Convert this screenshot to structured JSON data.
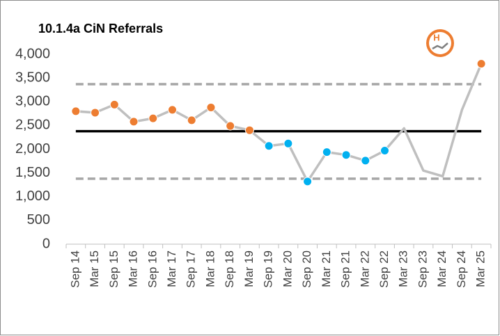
{
  "chart_data": {
    "type": "line",
    "title": "10.1.4a  CiN Referrals",
    "logo_text": "H",
    "categories": [
      "Sep 14",
      "Mar 15",
      "Sep 15",
      "Mar 16",
      "Sep 16",
      "Mar 17",
      "Sep 17",
      "Mar 18",
      "Sep 18",
      "Mar 19",
      "Sep 19",
      "Mar 20",
      "Sep 20",
      "Mar 21",
      "Sep 21",
      "Mar 22",
      "Sep 22",
      "Mar 23",
      "Sep 23",
      "Mar 24",
      "Sep 24",
      "Mar 25"
    ],
    "series": [
      {
        "color": "#bfbfbf",
        "values": [
          2800,
          2770,
          2940,
          2580,
          2650,
          2830,
          2610,
          2880,
          2490,
          2400,
          2070,
          2120,
          1320,
          1940,
          1880,
          1760,
          1970,
          2440,
          1550,
          1430,
          2830,
          3800
        ],
        "marker_colors": [
          "#ed7d31",
          "#ed7d31",
          "#ed7d31",
          "#ed7d31",
          "#ed7d31",
          "#ed7d31",
          "#ed7d31",
          "#ed7d31",
          "#ed7d31",
          "#ed7d31",
          "#00b0f0",
          "#00b0f0",
          "#00b0f0",
          "#00b0f0",
          "#00b0f0",
          "#00b0f0",
          "#00b0f0",
          null,
          null,
          null,
          null,
          "#ed7d31"
        ]
      }
    ],
    "reference_lines": [
      {
        "value": 3370,
        "color": "#a6a6a6",
        "dashed": true
      },
      {
        "value": 2380,
        "color": "#000000",
        "dashed": false
      },
      {
        "value": 1380,
        "color": "#a6a6a6",
        "dashed": true
      }
    ],
    "ylim": [
      0,
      4000
    ],
    "yticks": [
      0,
      500,
      {
        "value": 1000,
        "label": "1,000"
      },
      {
        "value": 1500,
        "label": "1,500"
      },
      {
        "value": 2000,
        "label": "2,000"
      },
      {
        "value": 2500,
        "label": "2,500"
      },
      {
        "value": 3000,
        "label": "3,000"
      },
      {
        "value": 3500,
        "label": "3,500"
      },
      {
        "value": 4000,
        "label": "4,000"
      }
    ],
    "grid": false
  }
}
